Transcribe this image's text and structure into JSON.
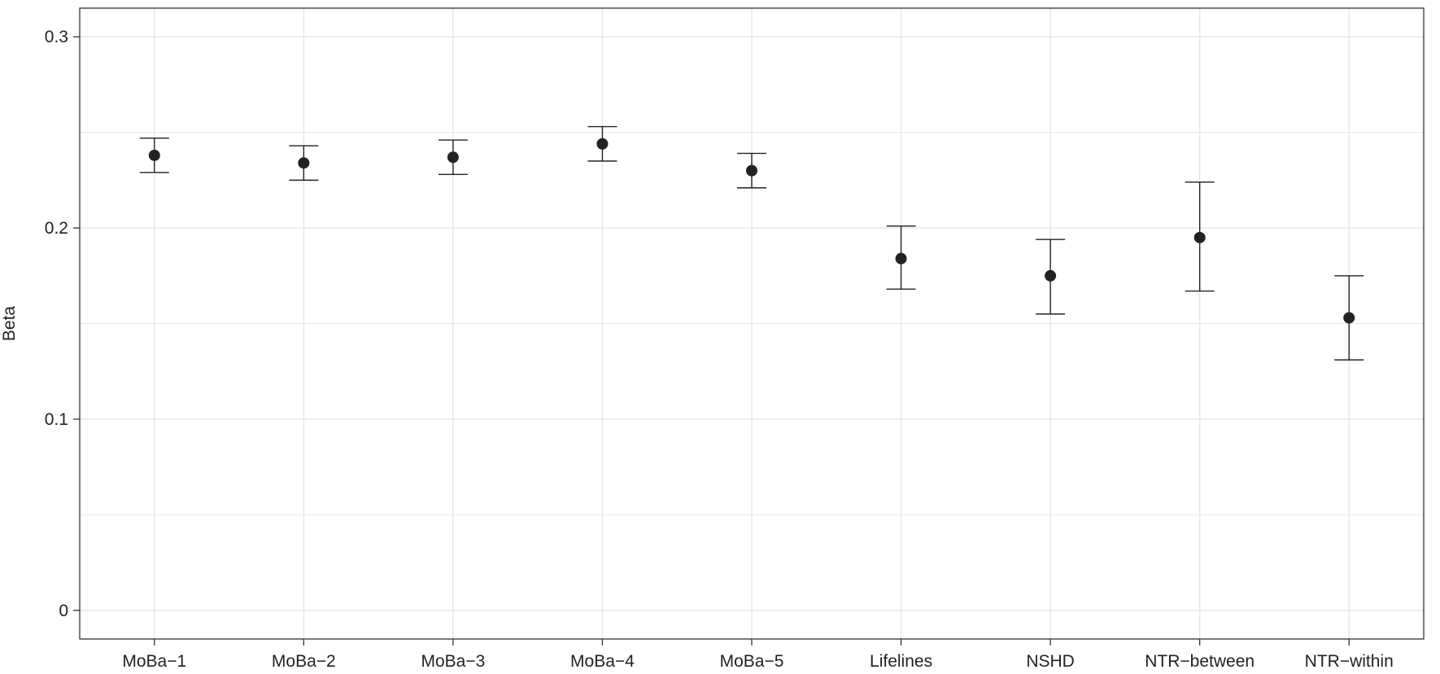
{
  "chart_data": {
    "type": "scatter",
    "title": "",
    "xlabel": "",
    "ylabel": "Beta",
    "ylim": [
      -0.015,
      0.315
    ],
    "y_ticks": [
      0,
      0.1,
      0.2,
      0.3
    ],
    "y_tick_labels": [
      "0",
      "0.1",
      "0.2",
      "0.3"
    ],
    "grid": true,
    "legend": "none",
    "categories": [
      "MoBa−1",
      "MoBa−2",
      "MoBa−3",
      "MoBa−4",
      "MoBa−5",
      "Lifelines",
      "NSHD",
      "NTR−between",
      "NTR−within"
    ],
    "series": [
      {
        "values": [
          0.238,
          0.234,
          0.237,
          0.244,
          0.23,
          0.184,
          0.175,
          0.195,
          0.153
        ],
        "lower": [
          0.229,
          0.225,
          0.228,
          0.235,
          0.221,
          0.168,
          0.155,
          0.167,
          0.131
        ],
        "upper": [
          0.247,
          0.243,
          0.246,
          0.253,
          0.239,
          0.201,
          0.194,
          0.224,
          0.175
        ]
      }
    ],
    "colors": {
      "point": "#222222",
      "grid": "#e6e6e6",
      "axis": "#333333"
    }
  }
}
